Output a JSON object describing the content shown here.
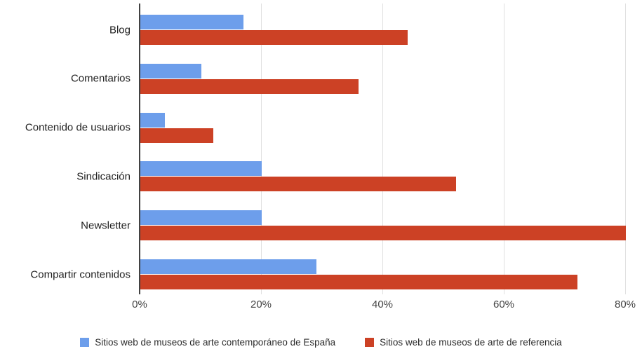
{
  "chart_data": {
    "type": "bar",
    "orientation": "horizontal",
    "title": "",
    "xlabel": "",
    "ylabel": "",
    "categories": [
      "Blog",
      "Comentarios",
      "Contenido de usuarios",
      "Sindicación",
      "Newsletter",
      "Compartir contenidos"
    ],
    "series": [
      {
        "name": "Sitios web de museos de arte contemporáneo de España",
        "color": "#6d9eeb",
        "values": [
          17,
          10,
          4,
          20,
          20,
          29
        ]
      },
      {
        "name": "Sitios web de museos de arte de referencia",
        "color": "#cc4125",
        "values": [
          44,
          36,
          12,
          52,
          80,
          72
        ]
      }
    ],
    "x_ticks": [
      "0%",
      "20%",
      "40%",
      "60%",
      "80%"
    ],
    "x_tick_values": [
      0,
      20,
      40,
      60,
      80
    ],
    "xlim": [
      0,
      82
    ],
    "grid": true,
    "legend_position": "bottom",
    "axis_color": "#424242",
    "gridline_color": "#e0e0e0",
    "tick_label_color": "#444444",
    "category_label_color": "#212121"
  }
}
